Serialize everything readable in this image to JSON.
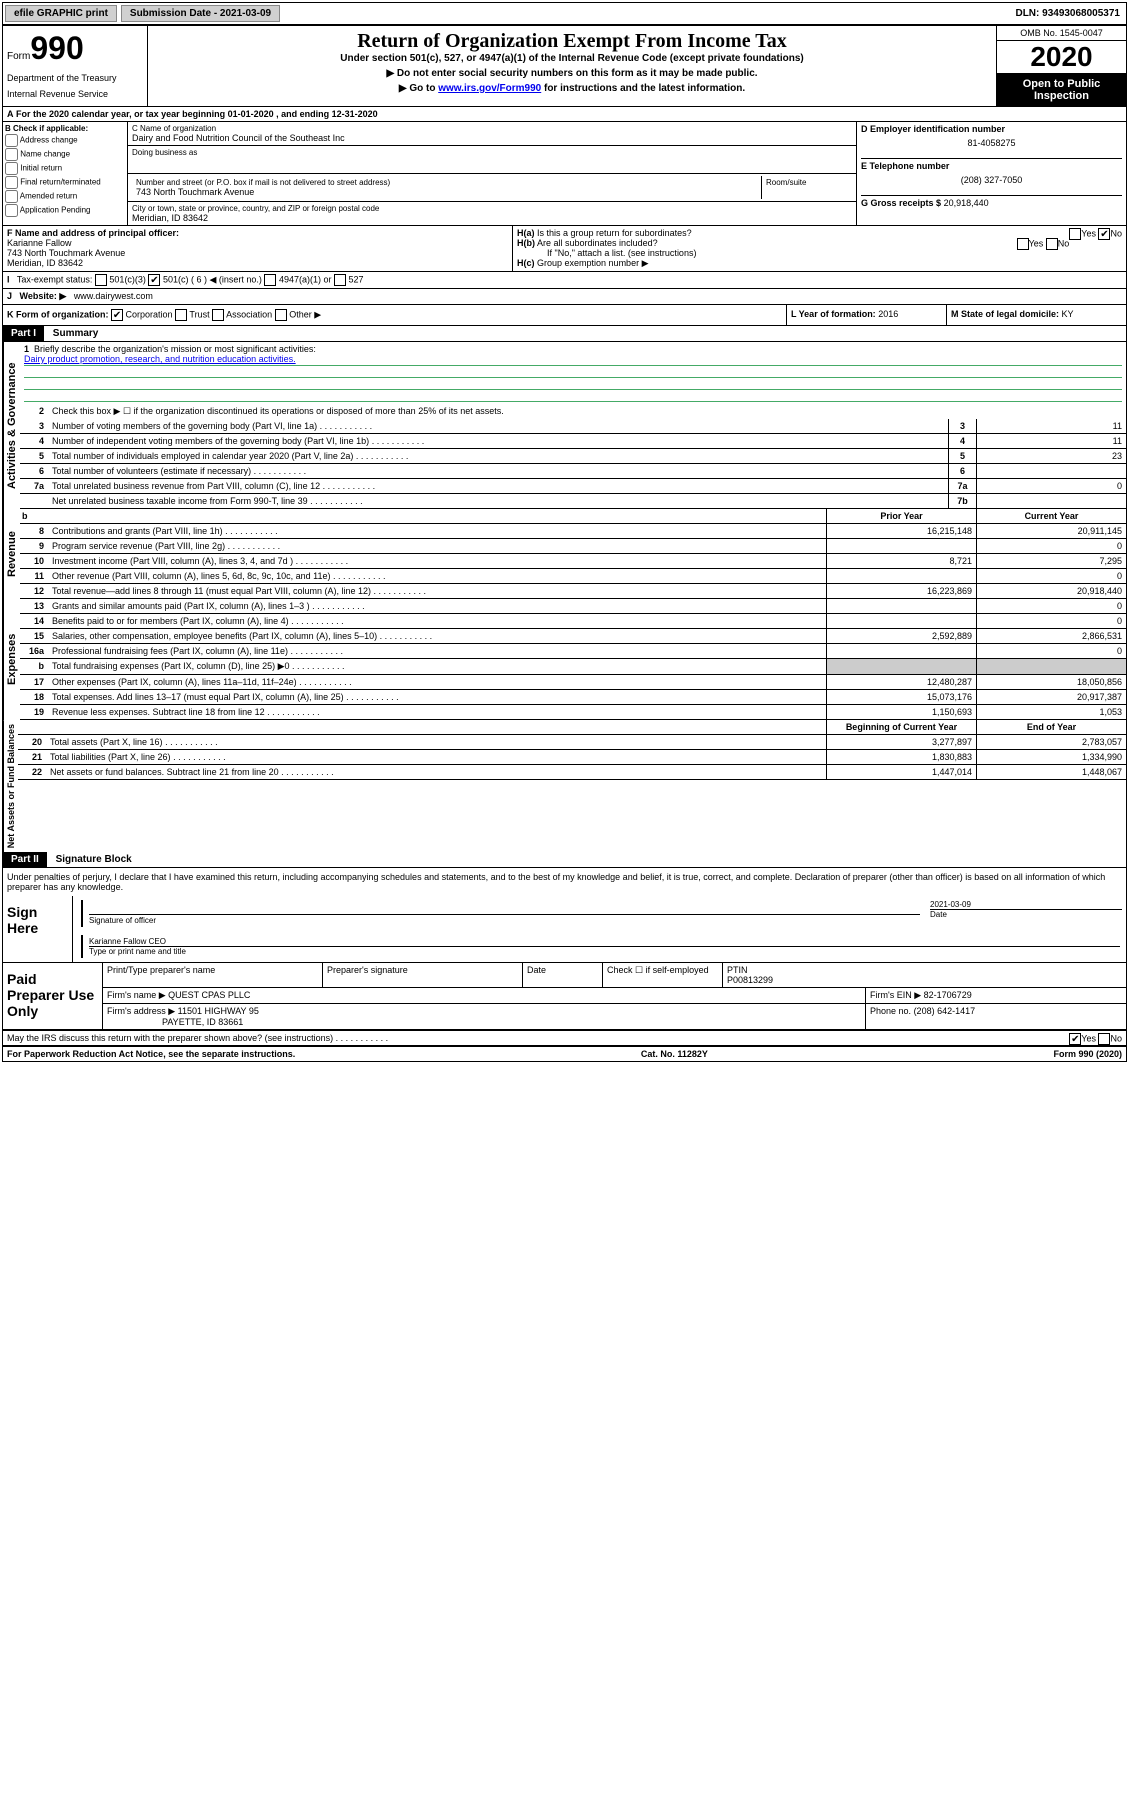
{
  "topbar": {
    "efile": "efile GRAPHIC print",
    "subdate_label": "Submission Date - 2021-03-09",
    "dln": "DLN: 93493068005371"
  },
  "header": {
    "form_label": "Form",
    "form_num": "990",
    "dept": "Department of the Treasury",
    "irs": "Internal Revenue Service",
    "title": "Return of Organization Exempt From Income Tax",
    "sub1": "Under section 501(c), 527, or 4947(a)(1) of the Internal Revenue Code (except private foundations)",
    "sub2": "▶ Do not enter social security numbers on this form as it may be made public.",
    "sub3_pre": "▶ Go to ",
    "sub3_link": "www.irs.gov/Form990",
    "sub3_post": " for instructions and the latest information.",
    "omb": "OMB No. 1545-0047",
    "year": "2020",
    "inspect1": "Open to Public",
    "inspect2": "Inspection"
  },
  "lineA": "For the 2020 calendar year, or tax year beginning 01-01-2020    , and ending 12-31-2020",
  "colB": {
    "hdr": "B Check if applicable:",
    "opts": [
      "Address change",
      "Name change",
      "Initial return",
      "Final return/terminated",
      "Amended return",
      "Application Pending"
    ]
  },
  "colC": {
    "name_lbl": "C Name of organization",
    "name": "Dairy and Food Nutrition Council of the Southeast Inc",
    "dba_lbl": "Doing business as",
    "street_lbl": "Number and street (or P.O. box if mail is not delivered to street address)",
    "room_lbl": "Room/suite",
    "street": "743 North Touchmark Avenue",
    "city_lbl": "City or town, state or province, country, and ZIP or foreign postal code",
    "city": "Meridian, ID  83642"
  },
  "colD": {
    "ein_lbl": "D Employer identification number",
    "ein": "81-4058275",
    "phone_lbl": "E Telephone number",
    "phone": "(208) 327-7050",
    "gross_lbl": "G Gross receipts $",
    "gross": "20,918,440"
  },
  "colF": {
    "lbl": "F Name and address of principal officer:",
    "name": "Karianne Fallow",
    "addr1": "743 North Touchmark Avenue",
    "addr2": "Meridian, ID  83642"
  },
  "colH": {
    "a": "Is this a group return for subordinates?",
    "b": "Are all subordinates included?",
    "b_note": "If \"No,\" attach a list. (see instructions)",
    "c": "Group exemption number ▶"
  },
  "tax": {
    "lbl": "Tax-exempt status:",
    "o1": "501(c)(3)",
    "o2": "501(c) ( 6 ) ◀ (insert no.)",
    "o3": "4947(a)(1) or",
    "o4": "527"
  },
  "rowJ": {
    "lbl": "Website: ▶",
    "val": "www.dairywest.com"
  },
  "rowK": {
    "lbl": "K Form of organization:",
    "opts": [
      "Corporation",
      "Trust",
      "Association",
      "Other ▶"
    ],
    "l_lbl": "L Year of formation:",
    "l_val": "2016",
    "m_lbl": "M State of legal domicile:",
    "m_val": "KY"
  },
  "part1": {
    "hdr": "Part I",
    "title": "Summary",
    "side1": "Activities & Governance",
    "side2": "Revenue",
    "side3": "Expenses",
    "side4": "Net Assets or Fund Balances",
    "l1": "Briefly describe the organization's mission or most significant activities:",
    "l1val": "Dairy product promotion, research, and nutrition education activities.",
    "l2": "Check this box ▶ ☐  if the organization discontinued its operations or disposed of more than 25% of its net assets.",
    "rows_gov": [
      {
        "n": "3",
        "d": "Number of voting members of the governing body (Part VI, line 1a)",
        "b": "3",
        "v": "11"
      },
      {
        "n": "4",
        "d": "Number of independent voting members of the governing body (Part VI, line 1b)",
        "b": "4",
        "v": "11"
      },
      {
        "n": "5",
        "d": "Total number of individuals employed in calendar year 2020 (Part V, line 2a)",
        "b": "5",
        "v": "23"
      },
      {
        "n": "6",
        "d": "Total number of volunteers (estimate if necessary)",
        "b": "6",
        "v": ""
      },
      {
        "n": "7a",
        "d": "Total unrelated business revenue from Part VIII, column (C), line 12",
        "b": "7a",
        "v": "0"
      },
      {
        "n": "",
        "d": "Net unrelated business taxable income from Form 990-T, line 39",
        "b": "7b",
        "v": ""
      }
    ],
    "hdr_prior": "Prior Year",
    "hdr_curr": "Current Year",
    "rows_rev": [
      {
        "n": "8",
        "d": "Contributions and grants (Part VIII, line 1h)",
        "p": "16,215,148",
        "c": "20,911,145"
      },
      {
        "n": "9",
        "d": "Program service revenue (Part VIII, line 2g)",
        "p": "",
        "c": "0"
      },
      {
        "n": "10",
        "d": "Investment income (Part VIII, column (A), lines 3, 4, and 7d )",
        "p": "8,721",
        "c": "7,295"
      },
      {
        "n": "11",
        "d": "Other revenue (Part VIII, column (A), lines 5, 6d, 8c, 9c, 10c, and 11e)",
        "p": "",
        "c": "0"
      },
      {
        "n": "12",
        "d": "Total revenue—add lines 8 through 11 (must equal Part VIII, column (A), line 12)",
        "p": "16,223,869",
        "c": "20,918,440"
      }
    ],
    "rows_exp": [
      {
        "n": "13",
        "d": "Grants and similar amounts paid (Part IX, column (A), lines 1–3 )",
        "p": "",
        "c": "0"
      },
      {
        "n": "14",
        "d": "Benefits paid to or for members (Part IX, column (A), line 4)",
        "p": "",
        "c": "0"
      },
      {
        "n": "15",
        "d": "Salaries, other compensation, employee benefits (Part IX, column (A), lines 5–10)",
        "p": "2,592,889",
        "c": "2,866,531"
      },
      {
        "n": "16a",
        "d": "Professional fundraising fees (Part IX, column (A), line 11e)",
        "p": "",
        "c": "0"
      },
      {
        "n": "b",
        "d": "Total fundraising expenses (Part IX, column (D), line 25) ▶0",
        "p": "—",
        "c": "—"
      },
      {
        "n": "17",
        "d": "Other expenses (Part IX, column (A), lines 11a–11d, 11f–24e)",
        "p": "12,480,287",
        "c": "18,050,856"
      },
      {
        "n": "18",
        "d": "Total expenses. Add lines 13–17 (must equal Part IX, column (A), line 25)",
        "p": "15,073,176",
        "c": "20,917,387"
      },
      {
        "n": "19",
        "d": "Revenue less expenses. Subtract line 18 from line 12",
        "p": "1,150,693",
        "c": "1,053"
      }
    ],
    "hdr_beg": "Beginning of Current Year",
    "hdr_end": "End of Year",
    "rows_net": [
      {
        "n": "20",
        "d": "Total assets (Part X, line 16)",
        "p": "3,277,897",
        "c": "2,783,057"
      },
      {
        "n": "21",
        "d": "Total liabilities (Part X, line 26)",
        "p": "1,830,883",
        "c": "1,334,990"
      },
      {
        "n": "22",
        "d": "Net assets or fund balances. Subtract line 21 from line 20",
        "p": "1,447,014",
        "c": "1,448,067"
      }
    ]
  },
  "part2": {
    "hdr": "Part II",
    "title": "Signature Block",
    "perjury": "Under penalties of perjury, I declare that I have examined this return, including accompanying schedules and statements, and to the best of my knowledge and belief, it is true, correct, and complete. Declaration of preparer (other than officer) is based on all information of which preparer has any knowledge.",
    "sign_here": "Sign Here",
    "sig_officer": "Signature of officer",
    "sig_date_lbl": "Date",
    "sig_date": "2021-03-09",
    "officer_name": "Karianne Fallow CEO",
    "officer_type": "Type or print name and title",
    "paid": "Paid Preparer Use Only",
    "prep_name_lbl": "Print/Type preparer's name",
    "prep_sig_lbl": "Preparer's signature",
    "date_lbl": "Date",
    "check_lbl": "Check ☐ if self-employed",
    "ptin_lbl": "PTIN",
    "ptin": "P00813299",
    "firm_name_lbl": "Firm's name   ▶",
    "firm_name": "QUEST CPAS PLLC",
    "firm_ein_lbl": "Firm's EIN ▶",
    "firm_ein": "82-1706729",
    "firm_addr_lbl": "Firm's address ▶",
    "firm_addr1": "11501 HIGHWAY 95",
    "firm_addr2": "PAYETTE, ID  83661",
    "firm_phone_lbl": "Phone no.",
    "firm_phone": "(208) 642-1417",
    "discuss": "May the IRS discuss this return with the preparer shown above? (see instructions)"
  },
  "footer": {
    "l": "For Paperwork Reduction Act Notice, see the separate instructions.",
    "c": "Cat. No. 11282Y",
    "r": "Form 990 (2020)"
  }
}
